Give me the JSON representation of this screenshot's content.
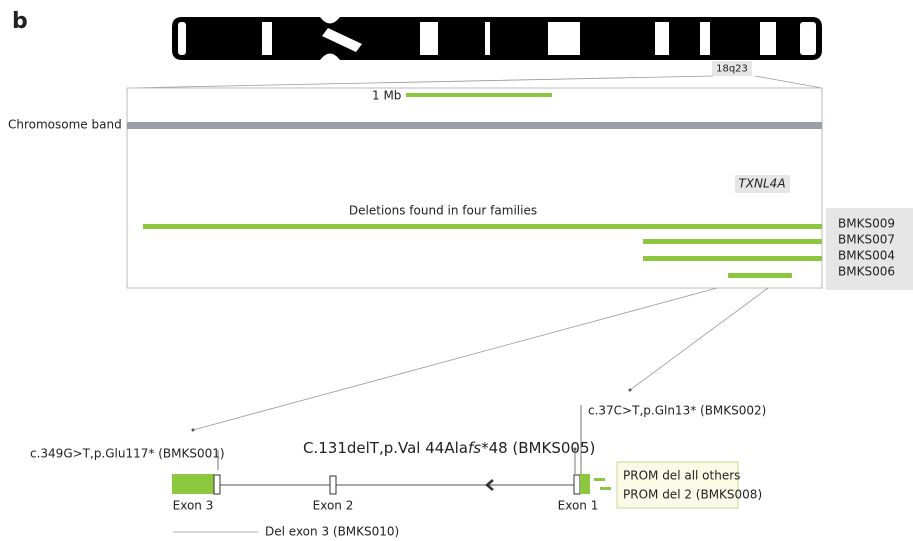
{
  "panel_label": "b",
  "band_label": "18q23",
  "scale_label": "1 Mb",
  "track_label": "Chromosome band",
  "gene_label": "TXNL4A",
  "deletions_title": "Deletions found in four families",
  "families": [
    "BMKS009",
    "BMKS007",
    "BMKS004",
    "BMKS006"
  ],
  "variants": {
    "exon3_variant": "c.349G>T,p.Glu117* (BMKS001)",
    "exon1_variant": "c.37C>T,p.Gln13* (BMKS002)",
    "main_variant": {
      "prefix": "C.131delT,p.Val 44Ala",
      "italic": "fs",
      "suffix": "*48 (BMKS005)"
    }
  },
  "exons": [
    "Exon 3",
    "Exon 2",
    "Exon 1"
  ],
  "promoter_deletions": [
    "PROM del all others",
    "PROM del 2 (BMKS008)"
  ],
  "exon_deletion": "Del exon 3 (BMKS010)"
}
